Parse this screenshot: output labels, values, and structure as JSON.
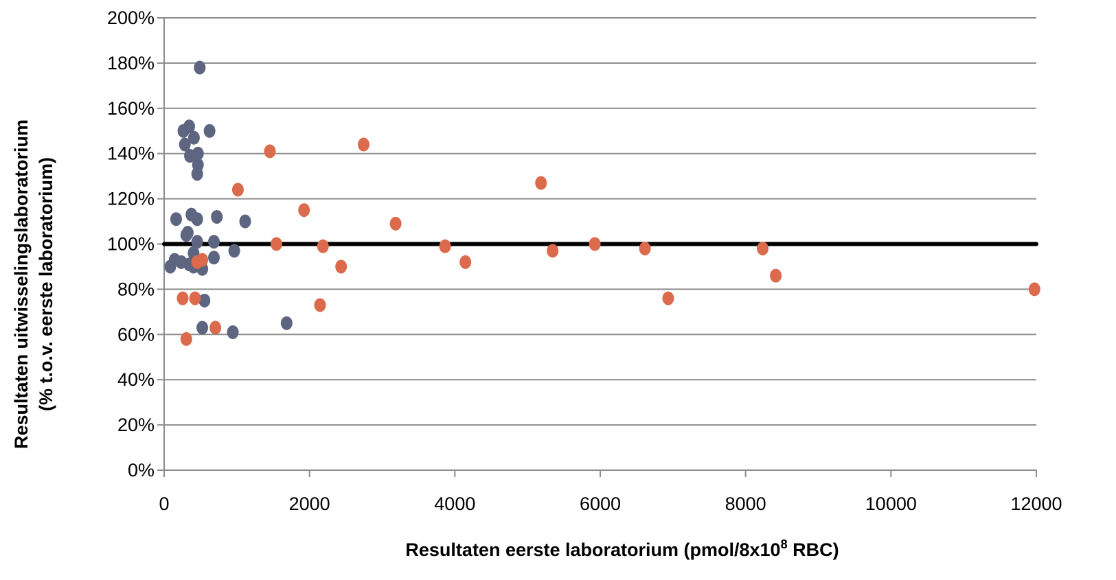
{
  "chart_data": {
    "type": "scatter",
    "title": "",
    "xlabel": "Resultaten eerste laboratorium  (pmol/8x10",
    "xlabel_superscript": "8",
    "xlabel_suffix": " RBC)",
    "ylabel_line1": "Resultaten uitwisselingslaboratorium",
    "ylabel_line2": "(% t.o.v. eerste laboratorium)",
    "xlim": [
      0,
      12000
    ],
    "ylim": [
      0,
      200
    ],
    "x_ticks": [
      0,
      2000,
      4000,
      6000,
      8000,
      10000,
      12000
    ],
    "y_ticks": [
      0,
      20,
      40,
      60,
      80,
      100,
      120,
      140,
      160,
      180,
      200
    ],
    "x_tick_labels": [
      "0",
      "2000",
      "4000",
      "6000",
      "8000",
      "10000",
      "12000"
    ],
    "y_tick_labels": [
      "0%",
      "20%",
      "40%",
      "60%",
      "80%",
      "100%",
      "120%",
      "140%",
      "160%",
      "180%",
      "200%"
    ],
    "grid": true,
    "reference_line": {
      "y": 100,
      "x_range": [
        0,
        12000
      ],
      "color": "#000000"
    },
    "series": [
      {
        "color": "#5d6580",
        "points": [
          [
            490,
            178
          ],
          [
            265,
            150
          ],
          [
            345,
            152
          ],
          [
            625,
            150
          ],
          [
            410,
            147
          ],
          [
            285,
            144
          ],
          [
            465,
            140
          ],
          [
            355,
            139
          ],
          [
            465,
            135
          ],
          [
            455,
            131
          ],
          [
            375,
            113
          ],
          [
            725,
            112
          ],
          [
            165,
            111
          ],
          [
            455,
            111
          ],
          [
            1115,
            110
          ],
          [
            325,
            105
          ],
          [
            305,
            104
          ],
          [
            455,
            101
          ],
          [
            685,
            101
          ],
          [
            965,
            97
          ],
          [
            405,
            96
          ],
          [
            685,
            94
          ],
          [
            145,
            93
          ],
          [
            235,
            92
          ],
          [
            345,
            91
          ],
          [
            405,
            90
          ],
          [
            85,
            90
          ],
          [
            525,
            89
          ],
          [
            555,
            75
          ],
          [
            525,
            63
          ],
          [
            1685,
            65
          ],
          [
            945,
            61
          ]
        ]
      },
      {
        "color": "#dc6a4c",
        "points": [
          [
            2745,
            144
          ],
          [
            1455,
            141
          ],
          [
            5185,
            127
          ],
          [
            1015,
            124
          ],
          [
            1925,
            115
          ],
          [
            3185,
            109
          ],
          [
            1545,
            100
          ],
          [
            5925,
            100
          ],
          [
            2185,
            99
          ],
          [
            3865,
            99
          ],
          [
            6615,
            98
          ],
          [
            8235,
            98
          ],
          [
            5345,
            97
          ],
          [
            525,
            93
          ],
          [
            455,
            92
          ],
          [
            4145,
            92
          ],
          [
            2435,
            90
          ],
          [
            8415,
            86
          ],
          [
            11975,
            80
          ],
          [
            255,
            76
          ],
          [
            425,
            76
          ],
          [
            6935,
            76
          ],
          [
            2145,
            73
          ],
          [
            705,
            63
          ],
          [
            305,
            58
          ]
        ]
      }
    ]
  }
}
